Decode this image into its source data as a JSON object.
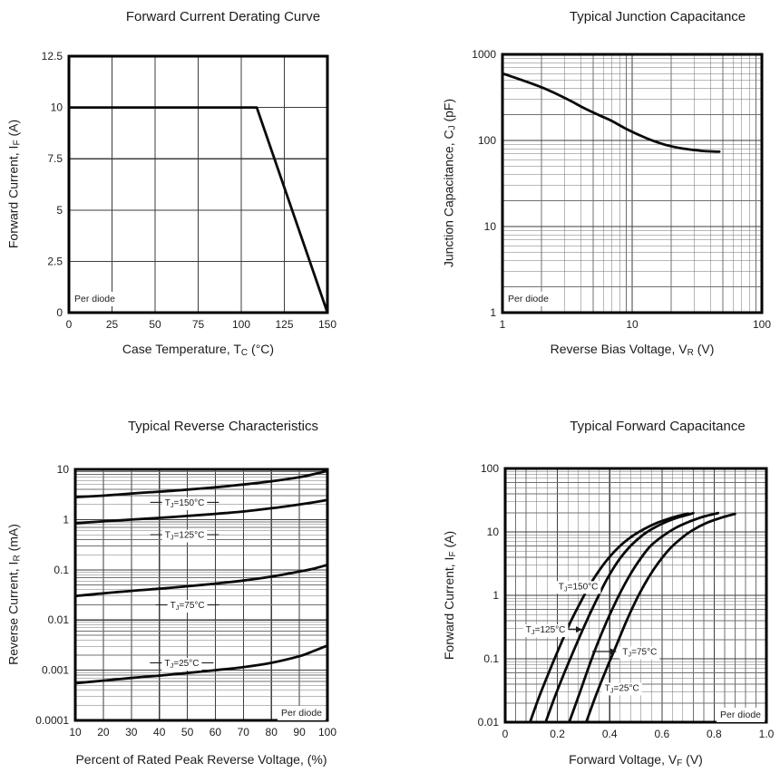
{
  "palette": {
    "ink": "#1c1c1c",
    "grid_minor": "#707070",
    "grid_major": "#3d3d3d",
    "curve": "#0a0a0a",
    "border": "#000000",
    "plot_bg": "#ffffff"
  },
  "chart_data": [
    {
      "type": "line",
      "title": "Forward Current Derating Curve",
      "xlabel": {
        "pre": "Case Temperature, T",
        "sub": "C",
        "post": " (°C)"
      },
      "ylabel": {
        "pre": "Forward Current, I",
        "sub": "F",
        "post": " (A)"
      },
      "xscale": "linear",
      "yscale": "linear",
      "xlim": [
        0,
        150
      ],
      "ylim": [
        0,
        12.5
      ],
      "grid": "on",
      "xticks": {
        "values": [
          0,
          25,
          50,
          75,
          100,
          125,
          150
        ],
        "labels": [
          "0",
          "25",
          "50",
          "75",
          "100",
          "125",
          "150"
        ]
      },
      "yticks": {
        "values": [
          0,
          2.5,
          5,
          7.5,
          10,
          12.5
        ],
        "labels": [
          "0",
          "2.5",
          "5",
          "7.5",
          "10",
          "12.5"
        ]
      },
      "note": "Per diode",
      "note_pos": "left",
      "series": [
        {
          "name": "derating",
          "smooth": false,
          "points": [
            [
              0,
              10
            ],
            [
              109,
              10
            ],
            [
              150,
              0
            ]
          ]
        }
      ]
    },
    {
      "type": "line",
      "title": "Typical Junction Capacitance",
      "xlabel": {
        "pre": "Reverse Bias Voltage, V",
        "sub": "R",
        "post": " (V)"
      },
      "ylabel": {
        "pre": "Junction Capacitance, C",
        "sub": "J",
        "post": " (pF)"
      },
      "xscale": "log",
      "yscale": "log",
      "xlim": [
        1,
        100
      ],
      "ylim": [
        1,
        1000
      ],
      "grid": "on",
      "xticks": {
        "values": [
          1,
          10,
          100
        ],
        "labels": [
          "1",
          "10",
          "100"
        ]
      },
      "yticks": {
        "values": [
          1,
          10,
          100,
          1000
        ],
        "labels": [
          "1",
          "10",
          "100",
          "1000"
        ]
      },
      "note": "Per diode",
      "note_pos": "left",
      "series": [
        {
          "name": "cj",
          "points": [
            [
              1,
              600
            ],
            [
              1.4,
              505
            ],
            [
              2,
              415
            ],
            [
              2.6,
              348
            ],
            [
              3.3,
              292
            ],
            [
              4.2,
              240
            ],
            [
              5.5,
              198
            ],
            [
              7,
              168
            ],
            [
              9,
              136
            ],
            [
              11,
              118
            ],
            [
              14,
              101
            ],
            [
              18,
              89
            ],
            [
              23,
              82
            ],
            [
              29,
              78
            ],
            [
              35,
              75.5
            ],
            [
              41,
              74.5
            ],
            [
              47,
              74
            ]
          ]
        }
      ]
    },
    {
      "type": "line",
      "title": "Typical Reverse Characteristics",
      "xlabel": {
        "pre": "Percent of Rated Peak Reverse Voltage, (%)"
      },
      "ylabel": {
        "pre": "Reverse Current, I",
        "sub": "R",
        "post": " (mA)"
      },
      "xscale": "linear",
      "yscale": "log",
      "xlim": [
        10,
        100
      ],
      "ylim": [
        0.0001,
        10
      ],
      "grid": "on",
      "xticks": {
        "values": [
          10,
          20,
          30,
          40,
          50,
          60,
          70,
          80,
          90,
          100
        ],
        "labels": [
          "10",
          "20",
          "30",
          "40",
          "50",
          "60",
          "70",
          "80",
          "90",
          "100"
        ]
      },
      "yticks": {
        "values": [
          0.0001,
          0.001,
          0.01,
          0.1,
          1,
          10
        ],
        "labels": [
          "0.0001",
          "0.001",
          "0.01",
          "0.1",
          "1",
          "10"
        ]
      },
      "note": "Per diode",
      "note_pos": "right",
      "series": [
        {
          "name": "tj-150",
          "label": {
            "pre": "T",
            "sub": "J",
            "post": "=150°C"
          },
          "label_at": [
            49,
            2.2
          ],
          "leader": true,
          "points": [
            [
              10,
              2.8
            ],
            [
              20,
              3.0
            ],
            [
              30,
              3.3
            ],
            [
              40,
              3.6
            ],
            [
              50,
              3.95
            ],
            [
              60,
              4.4
            ],
            [
              70,
              5.0
            ],
            [
              80,
              5.8
            ],
            [
              90,
              7.0
            ],
            [
              95,
              8.0
            ],
            [
              100,
              9.3
            ]
          ]
        },
        {
          "name": "tj-125",
          "label": {
            "pre": "T",
            "sub": "J",
            "post": "=125°C"
          },
          "label_at": [
            49,
            0.5
          ],
          "leader": true,
          "points": [
            [
              10,
              0.85
            ],
            [
              20,
              0.92
            ],
            [
              30,
              1.0
            ],
            [
              40,
              1.08
            ],
            [
              50,
              1.18
            ],
            [
              60,
              1.3
            ],
            [
              70,
              1.45
            ],
            [
              80,
              1.68
            ],
            [
              90,
              2.0
            ],
            [
              95,
              2.2
            ],
            [
              100,
              2.45
            ]
          ]
        },
        {
          "name": "tj-75",
          "label": {
            "pre": "T",
            "sub": "J",
            "post": "=75°C"
          },
          "label_at": [
            50,
            0.02
          ],
          "leader": true,
          "points": [
            [
              10,
              0.03
            ],
            [
              20,
              0.034
            ],
            [
              30,
              0.038
            ],
            [
              40,
              0.042
            ],
            [
              50,
              0.047
            ],
            [
              60,
              0.053
            ],
            [
              70,
              0.061
            ],
            [
              80,
              0.073
            ],
            [
              90,
              0.092
            ],
            [
              95,
              0.105
            ],
            [
              100,
              0.125
            ]
          ]
        },
        {
          "name": "tj-25",
          "label": {
            "pre": "T",
            "sub": "J",
            "post": "=25°C"
          },
          "label_at": [
            48,
            0.0014
          ],
          "leader": true,
          "points": [
            [
              10,
              0.00055
            ],
            [
              20,
              0.00062
            ],
            [
              30,
              0.0007
            ],
            [
              40,
              0.00078
            ],
            [
              50,
              0.00088
            ],
            [
              60,
              0.001
            ],
            [
              70,
              0.00115
            ],
            [
              80,
              0.0014
            ],
            [
              90,
              0.0019
            ],
            [
              95,
              0.0024
            ],
            [
              100,
              0.0031
            ]
          ]
        }
      ]
    },
    {
      "type": "line",
      "title": "Typical Forward Capacitance",
      "xlabel": {
        "pre": "Forward Voltage, V",
        "sub": "F",
        "post": " (V)"
      },
      "ylabel": {
        "pre": "Forward Current, I",
        "sub": "F",
        "post": " (A)"
      },
      "xscale": "linear",
      "yscale": "log",
      "xlim": [
        0,
        1.0
      ],
      "ylim": [
        0.01,
        100
      ],
      "grid": "on",
      "xminor_step": 0.04,
      "xticks": {
        "values": [
          0,
          0.2,
          0.4,
          0.6,
          0.8,
          1.0
        ],
        "labels": [
          "0",
          "0.2",
          "0.4",
          "0.6",
          "0.8",
          "1.0"
        ]
      },
      "yticks": {
        "values": [
          0.01,
          0.1,
          1,
          10,
          100
        ],
        "labels": [
          "0.01",
          "0.1",
          "1",
          "10",
          "100"
        ]
      },
      "note": "Per diode",
      "note_pos": "right",
      "annotations": [
        {
          "type": "arrow",
          "from": [
            0.243,
            0.29
          ],
          "to": [
            0.295,
            0.29
          ]
        },
        {
          "type": "arrow",
          "from": [
            0.333,
            0.13
          ],
          "to": [
            0.427,
            0.13
          ]
        }
      ],
      "series": [
        {
          "name": "tj-150",
          "label": {
            "pre": "T",
            "sub": "J",
            "post": "=150°C"
          },
          "label_at": [
            0.28,
            1.4
          ],
          "points": [
            [
              0.095,
              0.01
            ],
            [
              0.13,
              0.025
            ],
            [
              0.17,
              0.065
            ],
            [
              0.21,
              0.16
            ],
            [
              0.25,
              0.38
            ],
            [
              0.29,
              0.8
            ],
            [
              0.33,
              1.6
            ],
            [
              0.38,
              3.2
            ],
            [
              0.43,
              5.5
            ],
            [
              0.48,
              8.2
            ],
            [
              0.53,
              11
            ],
            [
              0.58,
              13.8
            ],
            [
              0.63,
              16.3
            ],
            [
              0.67,
              18.2
            ],
            [
              0.7,
              19.5
            ]
          ]
        },
        {
          "name": "tj-125",
          "label": {
            "pre": "T",
            "sub": "J",
            "post": "=125°C"
          },
          "label_at": [
            0.155,
            0.29
          ],
          "points": [
            [
              0.155,
              0.01
            ],
            [
              0.19,
              0.025
            ],
            [
              0.23,
              0.065
            ],
            [
              0.27,
              0.16
            ],
            [
              0.31,
              0.38
            ],
            [
              0.35,
              0.85
            ],
            [
              0.39,
              1.8
            ],
            [
              0.435,
              3.6
            ],
            [
              0.48,
              6
            ],
            [
              0.525,
              8.8
            ],
            [
              0.57,
              11.6
            ],
            [
              0.615,
              14.3
            ],
            [
              0.66,
              16.8
            ],
            [
              0.7,
              18.7
            ],
            [
              0.72,
              19.8
            ]
          ]
        },
        {
          "name": "tj-75",
          "label": {
            "pre": "T",
            "sub": "J",
            "post": "=75°C"
          },
          "label_at": [
            0.515,
            0.13
          ],
          "points": [
            [
              0.245,
              0.01
            ],
            [
              0.28,
              0.025
            ],
            [
              0.315,
              0.065
            ],
            [
              0.35,
              0.16
            ],
            [
              0.39,
              0.4
            ],
            [
              0.43,
              0.9
            ],
            [
              0.47,
              1.85
            ],
            [
              0.51,
              3.4
            ],
            [
              0.555,
              5.9
            ],
            [
              0.605,
              8.7
            ],
            [
              0.655,
              11.7
            ],
            [
              0.705,
              14.5
            ],
            [
              0.755,
              17.2
            ],
            [
              0.795,
              19
            ],
            [
              0.815,
              19.8
            ]
          ]
        },
        {
          "name": "tj-25",
          "label": {
            "pre": "T",
            "sub": "J",
            "post": "=25°C"
          },
          "label_at": [
            0.447,
            0.035
          ],
          "points": [
            [
              0.31,
              0.01
            ],
            [
              0.345,
              0.025
            ],
            [
              0.385,
              0.065
            ],
            [
              0.425,
              0.16
            ],
            [
              0.465,
              0.4
            ],
            [
              0.505,
              0.9
            ],
            [
              0.545,
              1.8
            ],
            [
              0.585,
              3.2
            ],
            [
              0.63,
              5.4
            ],
            [
              0.675,
              8
            ],
            [
              0.72,
              10.8
            ],
            [
              0.77,
              13.8
            ],
            [
              0.82,
              16.4
            ],
            [
              0.86,
              18.3
            ],
            [
              0.88,
              19.2
            ]
          ]
        }
      ]
    }
  ]
}
